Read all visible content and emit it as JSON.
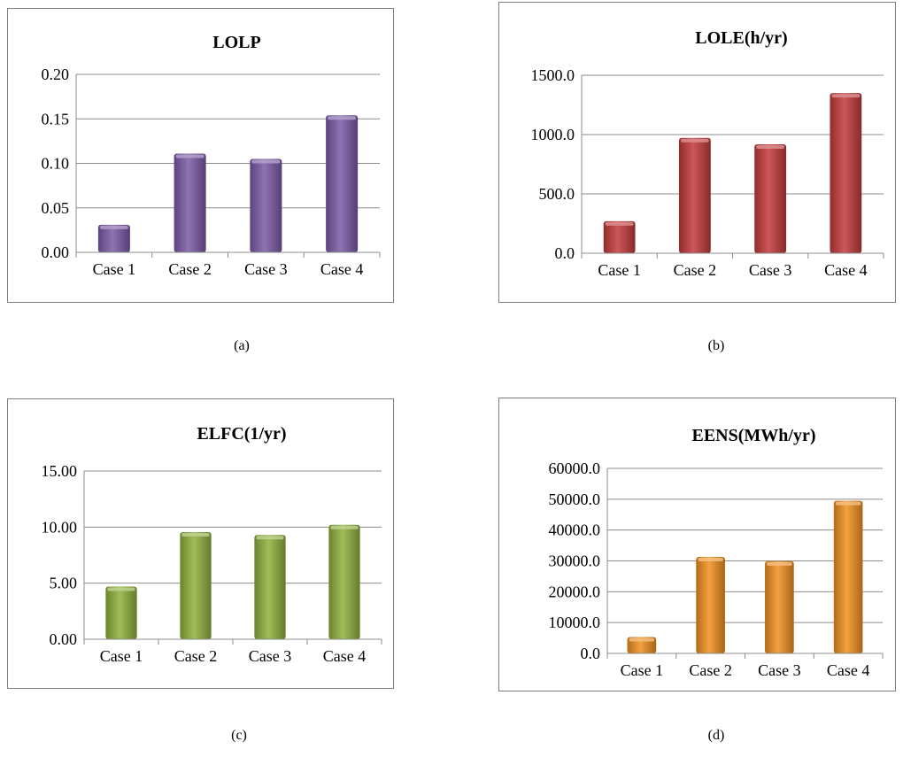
{
  "chart_data": [
    {
      "type": "bar",
      "title": "LOLP",
      "categories": [
        "Case 1",
        "Case 2",
        "Case 3",
        "Case 4"
      ],
      "values": [
        0.031,
        0.111,
        0.105,
        0.154
      ],
      "ylim": [
        0,
        0.2
      ],
      "yticks": [
        "0.00",
        "0.05",
        "0.10",
        "0.15",
        "0.20"
      ],
      "tick_values": [
        0,
        0.05,
        0.1,
        0.15,
        0.2
      ],
      "grid": true,
      "legend": "none",
      "color": "#7b5aa6",
      "caption": "(a)"
    },
    {
      "type": "bar",
      "title": "LOLE(h/yr)",
      "categories": [
        "Case 1",
        "Case 2",
        "Case 3",
        "Case 4"
      ],
      "values": [
        270,
        972,
        918,
        1350
      ],
      "ylim": [
        0,
        1500
      ],
      "yticks": [
        "0.0",
        "500.0",
        "1000.0",
        "1500.0"
      ],
      "tick_values": [
        0,
        500,
        1000,
        1500
      ],
      "grid": true,
      "legend": "none",
      "color": "#c33a3a",
      "caption": "(b)"
    },
    {
      "type": "bar",
      "title": "ELFC(1/yr)",
      "categories": [
        "Case 1",
        "Case 2",
        "Case 3",
        "Case 4"
      ],
      "values": [
        4.7,
        9.55,
        9.3,
        10.2
      ],
      "ylim": [
        0,
        15
      ],
      "yticks": [
        "0.00",
        "5.00",
        "10.00",
        "15.00"
      ],
      "tick_values": [
        0,
        5,
        10,
        15
      ],
      "grid": true,
      "legend": "none",
      "color": "#8fb03c",
      "caption": "(c)"
    },
    {
      "type": "bar",
      "title": "EENS(MWh/yr)",
      "categories": [
        "Case 1",
        "Case 2",
        "Case 3",
        "Case 4"
      ],
      "values": [
        5300,
        31300,
        29900,
        49500
      ],
      "ylim": [
        0,
        60000
      ],
      "yticks": [
        "0.0",
        "10000.0",
        "20000.0",
        "30000.0",
        "40000.0",
        "50000.0",
        "60000.0"
      ],
      "tick_values": [
        0,
        10000,
        20000,
        30000,
        40000,
        50000,
        60000
      ],
      "grid": true,
      "legend": "none",
      "color": "#f0901f",
      "caption": "(d)"
    }
  ]
}
